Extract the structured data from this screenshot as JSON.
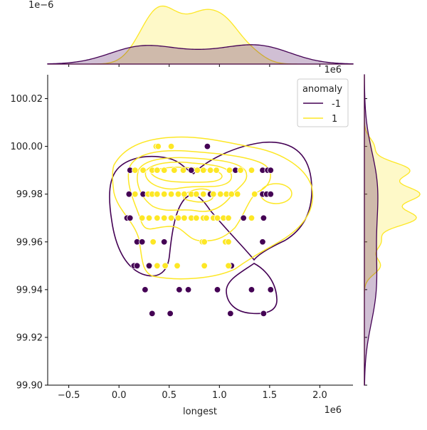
{
  "chart_data": {
    "type": "scatter",
    "subtype": "jointplot with KDE contours and marginal KDEs",
    "xlabel": "longest",
    "ylabel": "",
    "x_offset_label": "1e6",
    "top_marginal_offset_label": "1e−6",
    "xlim": [
      -0.71,
      2.33
    ],
    "ylim": [
      99.9,
      100.03
    ],
    "x_unit_scale": "1e6",
    "xticks": [
      "−0.5",
      "0.0",
      "0.5",
      "1.0",
      "1.5",
      "2.0"
    ],
    "xtick_values": [
      -0.5,
      0,
      0.5,
      1,
      1.5,
      2
    ],
    "yticks": [
      "99.90",
      "99.92",
      "99.94",
      "99.96",
      "99.98",
      "100.00",
      "100.02"
    ],
    "ytick_values": [
      99.9,
      99.92,
      99.94,
      99.96,
      99.98,
      100.0,
      100.02
    ],
    "grid": false,
    "legend": {
      "title": "anomaly",
      "placement": "top-right",
      "entries": [
        "-1",
        "1"
      ]
    },
    "series": [
      {
        "name": "-1",
        "color": "#440154",
        "points": [
          [
            0.88,
            100.0
          ],
          [
            0.11,
            99.99
          ],
          [
            0.72,
            99.99
          ],
          [
            1.16,
            99.99
          ],
          [
            1.43,
            99.99
          ],
          [
            1.48,
            99.99
          ],
          [
            1.51,
            99.99
          ],
          [
            0.1,
            99.98
          ],
          [
            0.24,
            99.98
          ],
          [
            0.91,
            99.98
          ],
          [
            1.43,
            99.98
          ],
          [
            1.47,
            99.98
          ],
          [
            1.51,
            99.98
          ],
          [
            0.08,
            99.97
          ],
          [
            0.11,
            99.97
          ],
          [
            1.24,
            99.97
          ],
          [
            1.44,
            99.97
          ],
          [
            0.18,
            99.96
          ],
          [
            0.23,
            99.96
          ],
          [
            0.45,
            99.96
          ],
          [
            1.43,
            99.96
          ],
          [
            0.15,
            99.95
          ],
          [
            0.18,
            99.95
          ],
          [
            0.3,
            99.95
          ],
          [
            1.12,
            99.95
          ],
          [
            0.26,
            99.94
          ],
          [
            0.6,
            99.94
          ],
          [
            0.69,
            99.94
          ],
          [
            0.98,
            99.94
          ],
          [
            1.32,
            99.94
          ],
          [
            1.51,
            99.94
          ],
          [
            0.33,
            99.93
          ],
          [
            0.51,
            99.93
          ],
          [
            1.11,
            99.93
          ],
          [
            1.44,
            99.93
          ]
        ]
      },
      {
        "name": "1",
        "color": "#fde725",
        "points": [
          [
            0.37,
            100.0
          ],
          [
            0.39,
            100.0
          ],
          [
            0.52,
            100.0
          ],
          [
            0.16,
            99.99
          ],
          [
            0.24,
            99.99
          ],
          [
            0.33,
            99.99
          ],
          [
            0.38,
            99.99
          ],
          [
            0.45,
            99.99
          ],
          [
            0.55,
            99.99
          ],
          [
            0.64,
            99.99
          ],
          [
            0.78,
            99.99
          ],
          [
            0.84,
            99.99
          ],
          [
            0.91,
            99.99
          ],
          [
            0.97,
            99.99
          ],
          [
            1.1,
            99.99
          ],
          [
            1.21,
            99.99
          ],
          [
            1.32,
            99.99
          ],
          [
            0.16,
            99.98
          ],
          [
            0.29,
            99.98
          ],
          [
            0.33,
            99.98
          ],
          [
            0.38,
            99.98
          ],
          [
            0.45,
            99.98
          ],
          [
            0.52,
            99.98
          ],
          [
            0.59,
            99.98
          ],
          [
            0.65,
            99.98
          ],
          [
            0.72,
            99.98
          ],
          [
            0.77,
            99.98
          ],
          [
            0.84,
            99.98
          ],
          [
            0.94,
            99.98
          ],
          [
            1.01,
            99.98
          ],
          [
            1.07,
            99.98
          ],
          [
            1.12,
            99.98
          ],
          [
            1.18,
            99.98
          ],
          [
            1.35,
            99.98
          ],
          [
            0.23,
            99.97
          ],
          [
            0.3,
            99.97
          ],
          [
            0.38,
            99.97
          ],
          [
            0.45,
            99.97
          ],
          [
            0.52,
            99.97
          ],
          [
            0.59,
            99.97
          ],
          [
            0.65,
            99.97
          ],
          [
            0.72,
            99.97
          ],
          [
            0.77,
            99.97
          ],
          [
            0.84,
            99.97
          ],
          [
            0.87,
            99.97
          ],
          [
            0.94,
            99.97
          ],
          [
            0.98,
            99.97
          ],
          [
            1.04,
            99.97
          ],
          [
            1.09,
            99.97
          ],
          [
            1.32,
            99.97
          ],
          [
            0.34,
            99.96
          ],
          [
            0.83,
            99.96
          ],
          [
            0.85,
            99.96
          ],
          [
            1.06,
            99.96
          ],
          [
            1.09,
            99.96
          ],
          [
            0.38,
            99.95
          ],
          [
            0.46,
            99.95
          ],
          [
            0.58,
            99.95
          ],
          [
            0.85,
            99.95
          ],
          [
            1.09,
            99.95
          ]
        ]
      }
    ]
  }
}
